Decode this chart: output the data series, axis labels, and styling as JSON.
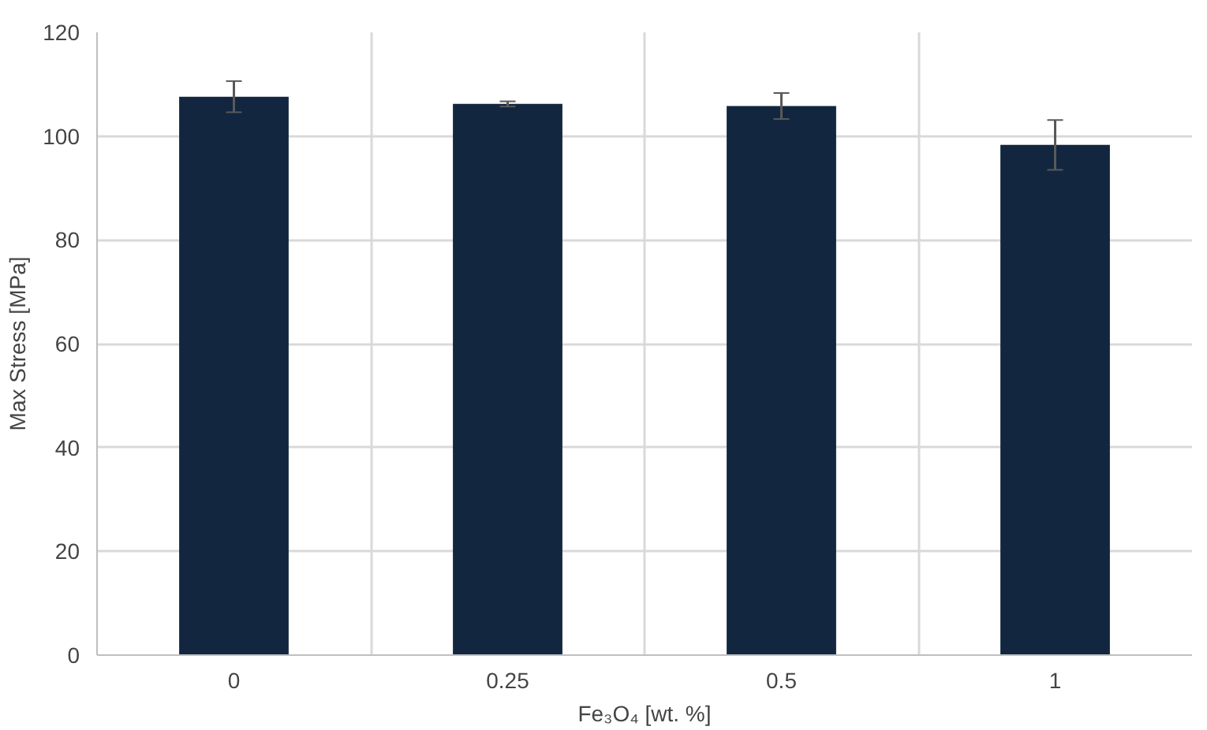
{
  "chart_data": {
    "type": "bar",
    "xlabel": "Fe₃O₄ [wt. %]",
    "ylabel": "Max Stress [MPa]",
    "categories": [
      "0",
      "0.25",
      "0.5",
      "1"
    ],
    "values": [
      107.6,
      106.2,
      105.8,
      98.3
    ],
    "errors": [
      3,
      0.5,
      2.5,
      4.8
    ],
    "color": "#12263f",
    "ylim": [
      0,
      120
    ],
    "yticks": [
      0,
      20,
      40,
      60,
      80,
      100,
      120
    ],
    "grid": true
  }
}
